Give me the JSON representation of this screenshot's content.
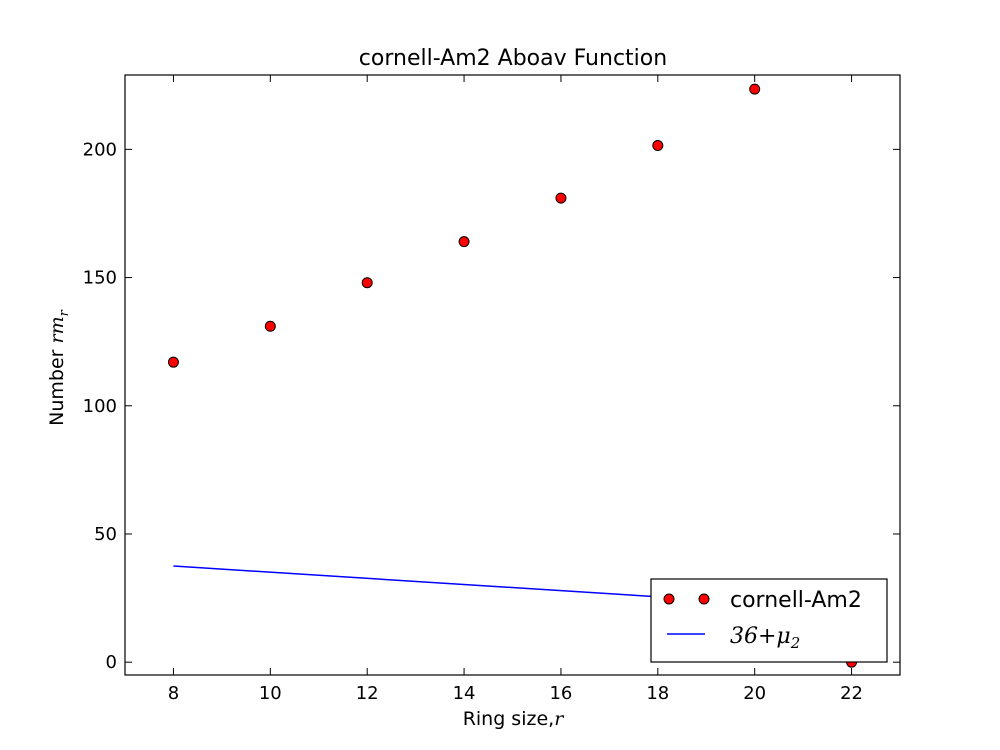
{
  "chart_data": {
    "type": "scatter",
    "title": "cornell-Am2 Aboav Function",
    "xlabel": {
      "text": "Ring size,",
      "math": "r"
    },
    "ylabel": {
      "text": "Number ",
      "math": "rm",
      "sub": "r"
    },
    "xlim": [
      7,
      23
    ],
    "ylim": [
      -5,
      229
    ],
    "xticks": [
      8,
      10,
      12,
      14,
      16,
      18,
      20,
      22
    ],
    "yticks": [
      0,
      50,
      100,
      150,
      200
    ],
    "grid": false,
    "legend_position": "lower right",
    "series": [
      {
        "name": "cornell-Am2",
        "kind": "markers",
        "color": "#ff0000",
        "points": [
          {
            "x": 8,
            "y": 117
          },
          {
            "x": 10,
            "y": 131
          },
          {
            "x": 12,
            "y": 148
          },
          {
            "x": 14,
            "y": 164
          },
          {
            "x": 16,
            "y": 181
          },
          {
            "x": 18,
            "y": 201.5
          },
          {
            "x": 20,
            "y": 223.5
          },
          {
            "x": 22,
            "y": 0
          }
        ]
      },
      {
        "name": "36 + μ2",
        "legend_math": {
          "text": "36+μ",
          "sub": "2"
        },
        "kind": "line",
        "color": "#0000ff",
        "points": [
          {
            "x": 8,
            "y": 37.5
          },
          {
            "x": 18,
            "y": 25.5
          }
        ]
      }
    ]
  }
}
